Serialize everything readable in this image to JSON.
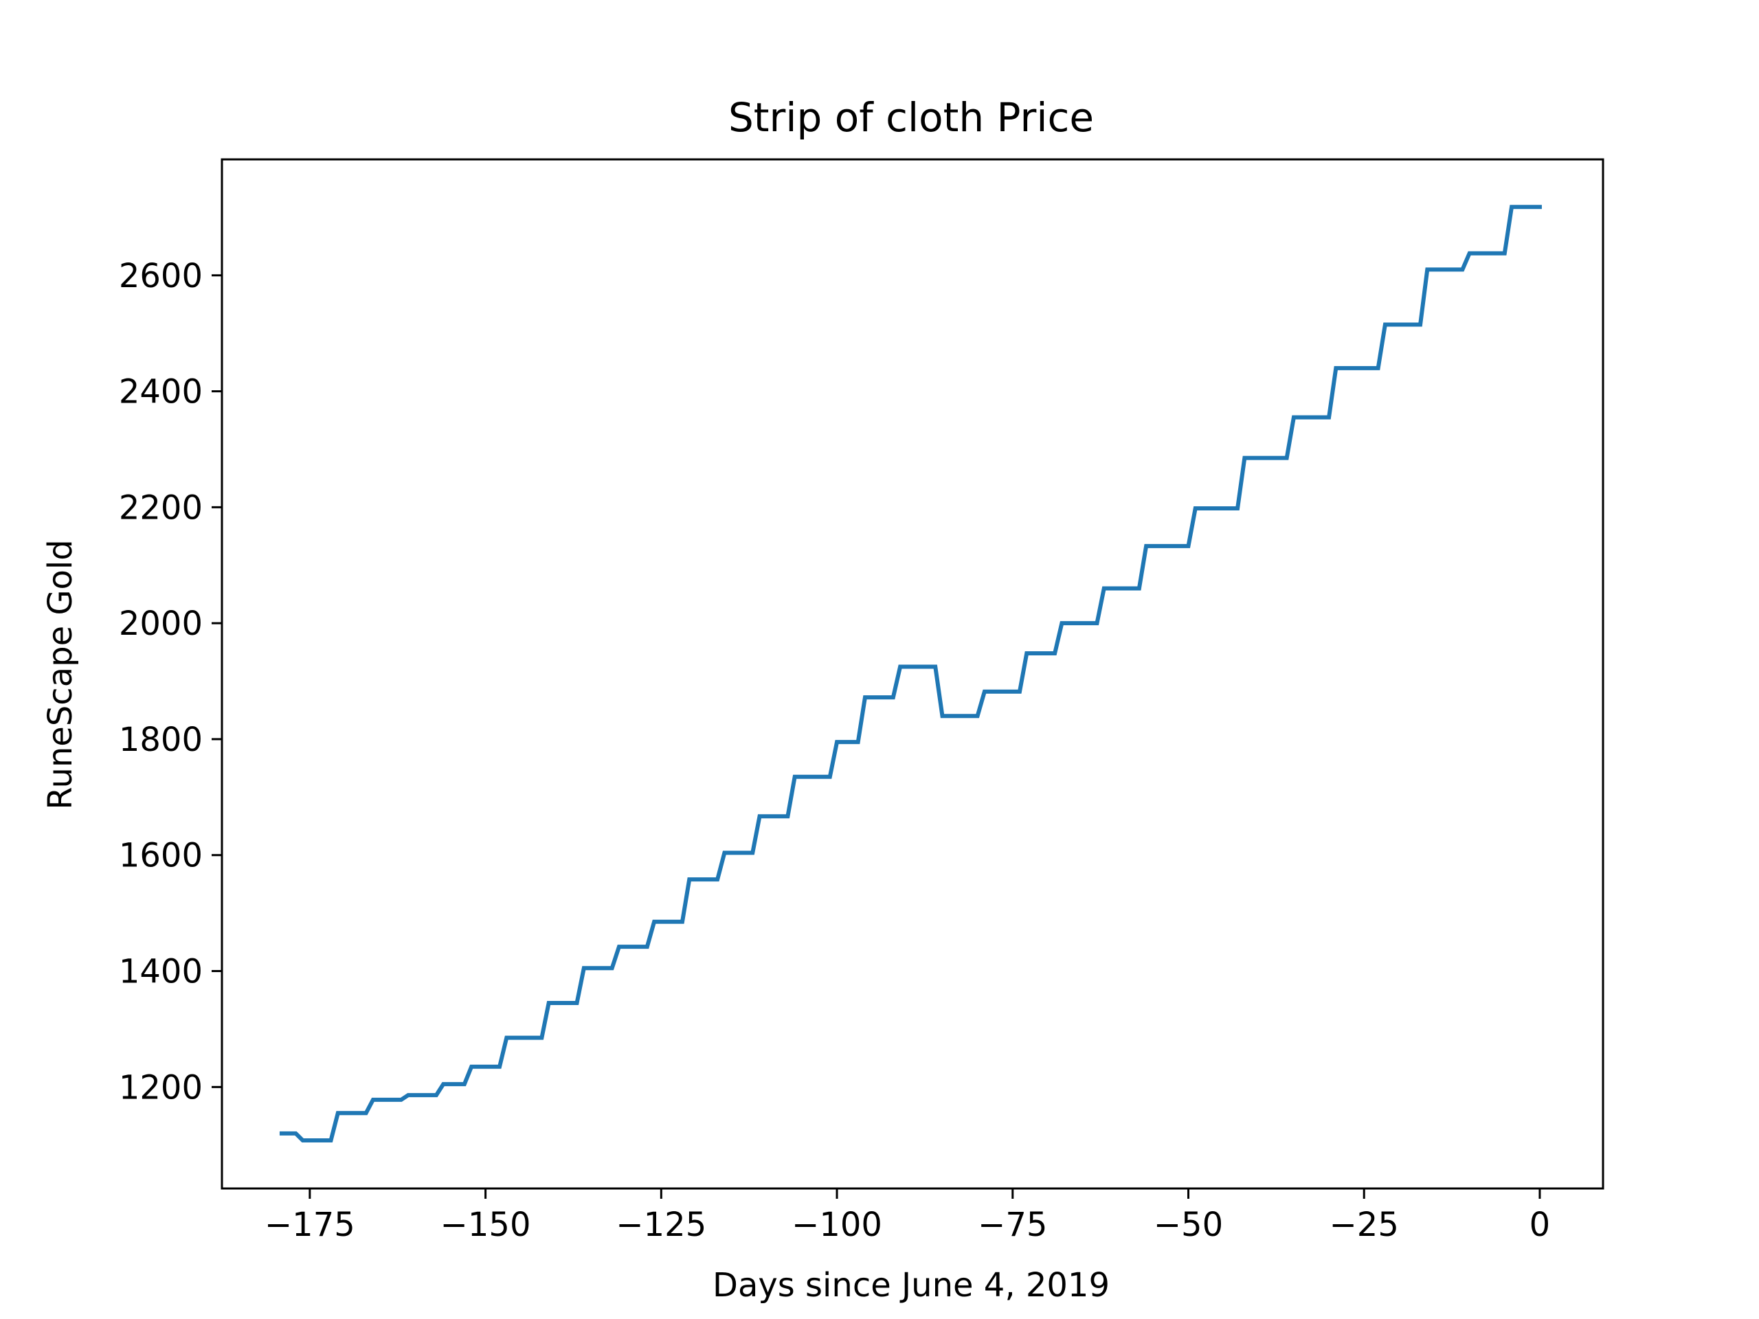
{
  "chart_data": {
    "type": "line",
    "title": "Strip of cloth Price",
    "xlabel": "Days since June 4, 2019",
    "ylabel": "RuneScape Gold",
    "xlim": [
      -187.5,
      9
    ],
    "ylim": [
      1025,
      2800
    ],
    "xticks": [
      -175,
      -150,
      -125,
      -100,
      -75,
      -50,
      -25,
      0
    ],
    "xtick_labels": [
      "−175",
      "−150",
      "−125",
      "−100",
      "−75",
      "−50",
      "−25",
      "0"
    ],
    "yticks": [
      1200,
      1400,
      1600,
      1800,
      2000,
      2200,
      2400,
      2600
    ],
    "ytick_labels": [
      "1200",
      "1400",
      "1600",
      "1800",
      "2000",
      "2200",
      "2400",
      "2600"
    ],
    "grid": false,
    "legend": "none",
    "series": [
      {
        "color": "#1f77b4",
        "x": [
          -179,
          -177,
          -176,
          -172,
          -171,
          -167,
          -166,
          -162,
          -161,
          -157,
          -156,
          -153,
          -152,
          -148,
          -147,
          -142,
          -141,
          -137,
          -136,
          -132,
          -131,
          -127,
          -126,
          -122,
          -121,
          -117,
          -116,
          -112,
          -111,
          -107,
          -106,
          -101,
          -100,
          -97,
          -96,
          -92,
          -91,
          -86,
          -85,
          -80,
          -79,
          -74,
          -73,
          -69,
          -68,
          -63,
          -62,
          -57,
          -56,
          -50,
          -49,
          -43,
          -42,
          -36,
          -35,
          -30,
          -29,
          -23,
          -22,
          -17,
          -16,
          -11,
          -10,
          -5,
          -4,
          0
        ],
        "y": [
          1120,
          1120,
          1108,
          1108,
          1155,
          1155,
          1178,
          1178,
          1186,
          1186,
          1205,
          1205,
          1235,
          1235,
          1285,
          1285,
          1345,
          1345,
          1405,
          1405,
          1442,
          1442,
          1485,
          1485,
          1558,
          1558,
          1604,
          1604,
          1667,
          1667,
          1735,
          1735,
          1795,
          1795,
          1872,
          1872,
          1925,
          1925,
          1840,
          1840,
          1882,
          1882,
          1948,
          1948,
          2000,
          2000,
          2060,
          2060,
          2133,
          2133,
          2198,
          2198,
          2285,
          2285,
          2355,
          2355,
          2440,
          2440,
          2515,
          2515,
          2610,
          2610,
          2638,
          2638,
          2718,
          2718
        ]
      }
    ]
  }
}
